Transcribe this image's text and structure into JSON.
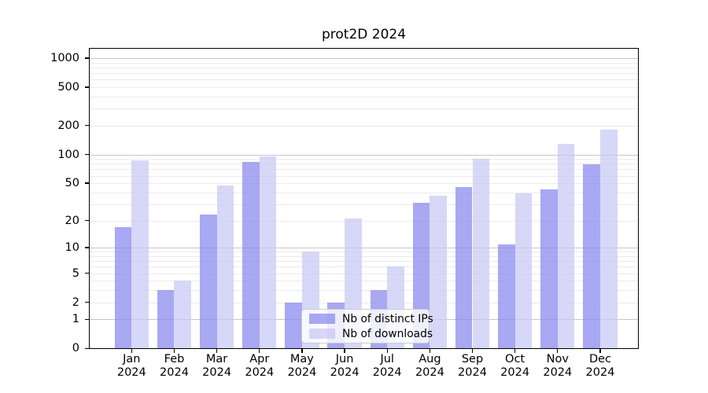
{
  "chart_data": {
    "type": "bar",
    "title": "prot2D 2024",
    "x_year": "2024",
    "categories": [
      "Jan",
      "Feb",
      "Mar",
      "Apr",
      "May",
      "Jun",
      "Jul",
      "Aug",
      "Sep",
      "Oct",
      "Nov",
      "Dec"
    ],
    "series": [
      {
        "name": "Nb of distinct IPs",
        "color": "#8686ee",
        "alpha": 0.72,
        "values": [
          17,
          3,
          23,
          83,
          2,
          2,
          3,
          31,
          46,
          11,
          43,
          79
        ]
      },
      {
        "name": "Nb of downloads",
        "color": "#c7c7f5",
        "alpha": 0.72,
        "values": [
          87,
          4,
          47,
          95,
          9,
          21,
          6,
          37,
          90,
          39,
          130,
          180
        ]
      }
    ],
    "y_scale": "log10(value+1)",
    "y_tick_values": [
      0,
      1,
      2,
      5,
      10,
      20,
      50,
      100,
      200,
      500,
      1000
    ],
    "y_tick_labels": [
      "0",
      "1",
      "2",
      "5",
      "10",
      "20",
      "50",
      "100",
      "200",
      "500",
      "1000"
    ],
    "ylim": [
      0,
      1250
    ],
    "grid": "on",
    "grid_major_color": "#c6c6c6",
    "grid_minor_color": "#ebebeb",
    "legend_position": "lower-center-right",
    "axis_color": "#000000",
    "background_color": "#ffffff"
  }
}
